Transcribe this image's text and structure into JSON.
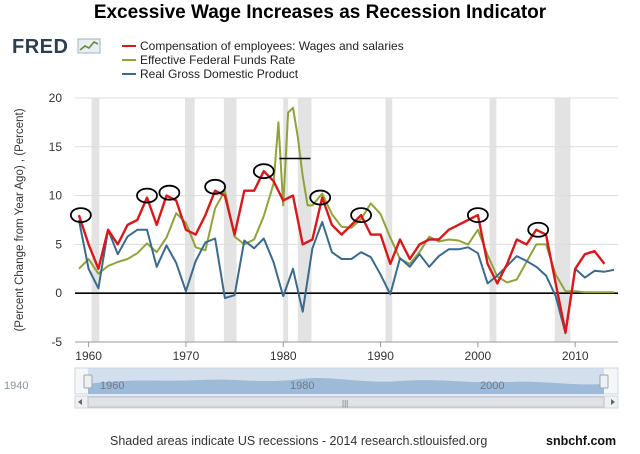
{
  "header": {
    "title": "Excessive Wage Increases as Recession Indicator",
    "logo": "FRED"
  },
  "legend": [
    {
      "label": "Compensation of employees: Wages and salaries",
      "color": "#d7191c"
    },
    {
      "label": "Effective Federal Funds Rate",
      "color": "#8fa33a"
    },
    {
      "label": "Real Gross Domestic Product",
      "color": "#3b6a8c"
    }
  ],
  "navigator": {
    "start_label": "1940",
    "tick_labels": [
      "1960",
      "1980",
      "2000"
    ]
  },
  "footer": {
    "note": "Shaded areas indicate US recessions - 2014 research.stlouisfed.org",
    "brand": "snbchf.com"
  },
  "chart_data": {
    "type": "line",
    "ylabel": "(Percent Change from Year Ago) , (Percent)",
    "xlim": [
      1958.6,
      2014.4
    ],
    "ylim": [
      -5,
      20
    ],
    "yticks": [
      -5,
      0,
      5,
      10,
      15,
      20
    ],
    "xticks": [
      1960,
      1970,
      1980,
      1990,
      2000,
      2010
    ],
    "grid": true,
    "legend_position": "top-left",
    "recessions": [
      [
        1960.3,
        1961.1
      ],
      [
        1969.9,
        1970.9
      ],
      [
        1973.9,
        1975.2
      ],
      [
        1980.0,
        1980.5
      ],
      [
        1981.5,
        1982.9
      ],
      [
        1990.5,
        1991.2
      ],
      [
        2001.2,
        2001.9
      ],
      [
        2007.9,
        2009.5
      ]
    ],
    "annotations": [
      {
        "type": "ellipse",
        "x": 1959.2,
        "y": 8.0
      },
      {
        "type": "ellipse",
        "x": 1966.0,
        "y": 10.0
      },
      {
        "type": "ellipse",
        "x": 1968.3,
        "y": 10.3
      },
      {
        "type": "ellipse",
        "x": 1973.0,
        "y": 10.9
      },
      {
        "type": "ellipse",
        "x": 1978.0,
        "y": 12.5
      },
      {
        "type": "ellipse",
        "x": 1983.8,
        "y": 9.8
      },
      {
        "type": "ellipse",
        "x": 1988.0,
        "y": 8.0
      },
      {
        "type": "ellipse",
        "x": 2000.0,
        "y": 8.0
      },
      {
        "type": "ellipse",
        "x": 2006.2,
        "y": 6.5
      },
      {
        "type": "hline",
        "x1": 1979.6,
        "x2": 1982.8,
        "y": 13.8
      }
    ],
    "series": [
      {
        "name": "Compensation of employees: Wages and salaries",
        "color": "#d7191c",
        "x": [
          1959.0,
          1960.0,
          1961.0,
          1962.0,
          1963.0,
          1964.0,
          1965.0,
          1966.0,
          1967.0,
          1968.0,
          1969.0,
          1970.0,
          1971.0,
          1972.0,
          1973.0,
          1974.0,
          1975.0,
          1976.0,
          1977.0,
          1978.0,
          1979.0,
          1980.0,
          1981.0,
          1982.0,
          1983.0,
          1984.0,
          1985.0,
          1986.0,
          1987.0,
          1988.0,
          1989.0,
          1990.0,
          1991.0,
          1992.0,
          1993.0,
          1994.0,
          1995.0,
          1996.0,
          1997.0,
          1998.0,
          1999.0,
          2000.0,
          2001.0,
          2002.0,
          2003.0,
          2004.0,
          2005.0,
          2006.0,
          2007.0,
          2008.0,
          2009.0,
          2010.0,
          2011.0,
          2012.0,
          2013.0
        ],
        "y": [
          8.0,
          5.0,
          2.5,
          6.5,
          5.0,
          7.0,
          7.5,
          9.8,
          7.0,
          10.0,
          9.5,
          6.5,
          6.0,
          8.0,
          10.5,
          10.0,
          6.0,
          10.5,
          10.5,
          12.5,
          11.5,
          9.5,
          10.0,
          5.0,
          5.5,
          9.8,
          7.0,
          6.0,
          7.0,
          8.0,
          6.0,
          6.0,
          3.0,
          5.5,
          3.5,
          5.0,
          5.5,
          5.5,
          6.5,
          7.0,
          7.5,
          8.0,
          3.0,
          1.0,
          3.0,
          5.5,
          5.0,
          6.5,
          6.0,
          1.0,
          -4.0,
          2.5,
          4.0,
          4.3,
          3.0
        ]
      },
      {
        "name": "Effective Federal Funds Rate",
        "color": "#8fa33a",
        "x": [
          1959.0,
          1960.0,
          1961.0,
          1962.0,
          1963.0,
          1964.0,
          1965.0,
          1966.0,
          1967.0,
          1968.0,
          1969.0,
          1970.0,
          1971.0,
          1972.0,
          1973.0,
          1974.0,
          1975.0,
          1976.0,
          1977.0,
          1978.0,
          1979.0,
          1979.5,
          1980.0,
          1980.5,
          1981.0,
          1981.5,
          1982.0,
          1982.5,
          1983.0,
          1984.0,
          1985.0,
          1986.0,
          1987.0,
          1988.0,
          1989.0,
          1990.0,
          1991.0,
          1992.0,
          1993.0,
          1994.0,
          1995.0,
          1996.0,
          1997.0,
          1998.0,
          1999.0,
          2000.0,
          2001.0,
          2002.0,
          2003.0,
          2004.0,
          2005.0,
          2006.0,
          2007.0,
          2008.0,
          2009.0,
          2010.0,
          2011.0,
          2012.0,
          2013.0,
          2014.0
        ],
        "y": [
          2.5,
          3.5,
          2.0,
          2.8,
          3.2,
          3.5,
          4.1,
          5.1,
          4.2,
          5.7,
          8.2,
          7.2,
          4.7,
          4.4,
          8.7,
          10.5,
          5.8,
          5.0,
          5.5,
          7.9,
          11.2,
          17.5,
          9.0,
          18.5,
          19.0,
          16.0,
          12.0,
          9.0,
          9.0,
          10.2,
          8.1,
          6.8,
          6.7,
          7.6,
          9.2,
          8.1,
          5.7,
          3.5,
          3.0,
          4.2,
          5.8,
          5.3,
          5.5,
          5.4,
          5.0,
          6.5,
          3.9,
          1.7,
          1.1,
          1.4,
          3.2,
          5.0,
          5.0,
          1.9,
          0.2,
          0.2,
          0.1,
          0.1,
          0.1,
          0.1
        ]
      },
      {
        "name": "Real Gross Domestic Product",
        "color": "#3b6a8c",
        "x": [
          1959.0,
          1960.0,
          1961.0,
          1962.0,
          1963.0,
          1964.0,
          1965.0,
          1966.0,
          1967.0,
          1968.0,
          1969.0,
          1970.0,
          1971.0,
          1972.0,
          1973.0,
          1974.0,
          1975.0,
          1976.0,
          1977.0,
          1978.0,
          1979.0,
          1980.0,
          1981.0,
          1982.0,
          1983.0,
          1984.0,
          1985.0,
          1986.0,
          1987.0,
          1988.0,
          1989.0,
          1990.0,
          1991.0,
          1992.0,
          1993.0,
          1994.0,
          1995.0,
          1996.0,
          1997.0,
          1998.0,
          1999.0,
          2000.0,
          2001.0,
          2002.0,
          2003.0,
          2004.0,
          2005.0,
          2006.0,
          2007.0,
          2008.0,
          2009.0,
          2010.0,
          2011.0,
          2012.0,
          2013.0,
          2014.0
        ],
        "y": [
          7.5,
          2.5,
          0.5,
          6.5,
          4.0,
          5.8,
          6.5,
          6.5,
          2.7,
          4.9,
          3.1,
          0.2,
          3.3,
          5.2,
          5.6,
          -0.5,
          -0.2,
          5.4,
          4.6,
          5.6,
          3.2,
          -0.3,
          2.5,
          -1.9,
          4.6,
          7.3,
          4.2,
          3.5,
          3.5,
          4.2,
          3.7,
          1.9,
          -0.1,
          3.6,
          2.7,
          4.0,
          2.7,
          3.8,
          4.5,
          4.5,
          4.7,
          4.1,
          1.0,
          1.8,
          2.8,
          3.8,
          3.3,
          2.7,
          1.8,
          -0.3,
          -4.1,
          2.5,
          1.6,
          2.3,
          2.2,
          2.4
        ]
      }
    ]
  }
}
